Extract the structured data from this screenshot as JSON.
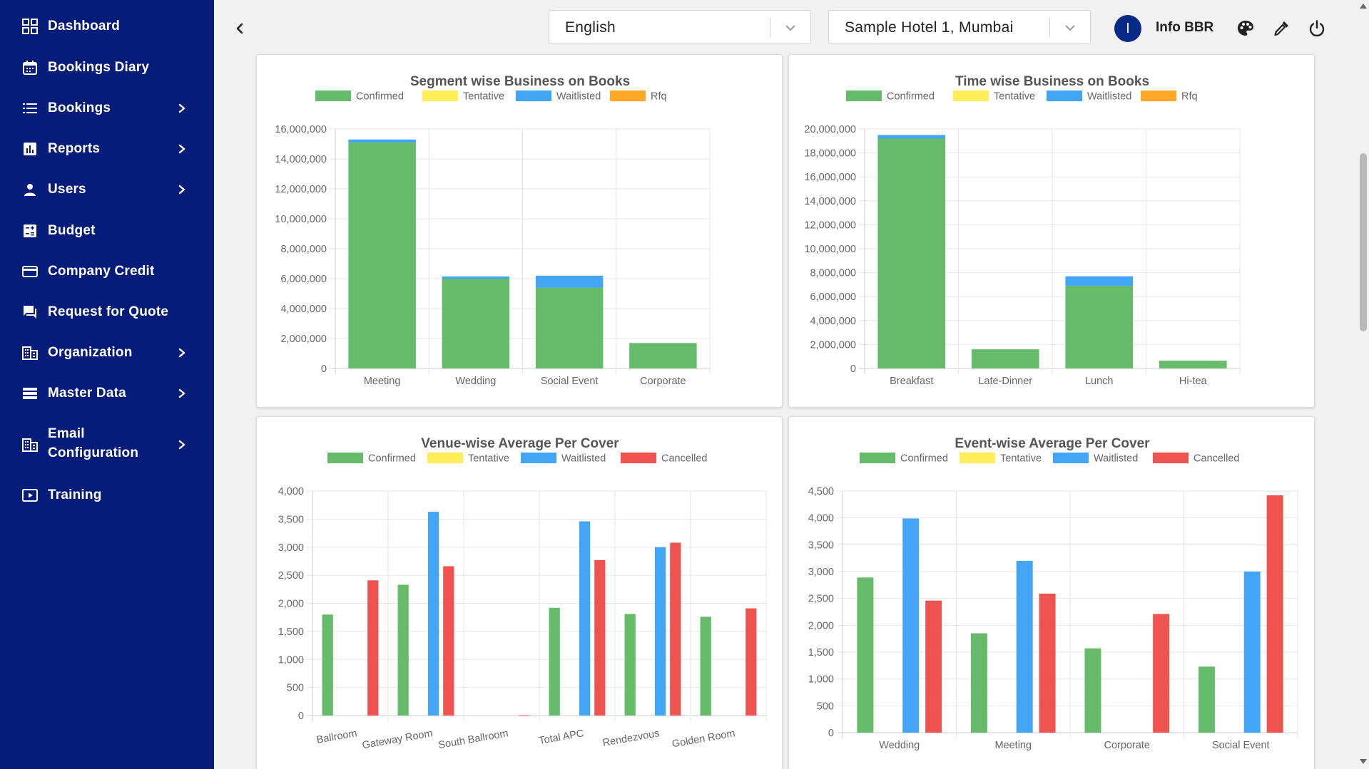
{
  "sidebar": {
    "items": [
      {
        "label": "Dashboard",
        "icon": "grid-icon",
        "chevron": false
      },
      {
        "label": "Bookings Diary",
        "icon": "calendar-icon",
        "chevron": false
      },
      {
        "label": "Bookings",
        "icon": "list-icon",
        "chevron": true
      },
      {
        "label": "Reports",
        "icon": "bar-chart-icon",
        "chevron": true
      },
      {
        "label": "Users",
        "icon": "person-icon",
        "chevron": true
      },
      {
        "label": "Budget",
        "icon": "calculator-icon",
        "chevron": false
      },
      {
        "label": "Company Credit",
        "icon": "credit-card-icon",
        "chevron": false
      },
      {
        "label": "Request for Quote",
        "icon": "chat-icon",
        "chevron": false
      },
      {
        "label": "Organization",
        "icon": "building-icon",
        "chevron": true
      },
      {
        "label": "Master Data",
        "icon": "stack-icon",
        "chevron": true
      },
      {
        "label": "Email\nConfiguration",
        "icon": "building-icon",
        "chevron": true
      },
      {
        "label": "Training",
        "icon": "video-icon",
        "chevron": false
      }
    ]
  },
  "header": {
    "language": "English",
    "property": "Sample Hotel 1, Mumbai",
    "avatar_initial": "I",
    "username": "Info BBR"
  },
  "colors": {
    "confirmed": "#66bb6a",
    "tentative": "#ffee58",
    "waitlisted": "#42a5f5",
    "rfq": "#ffa726",
    "cancelled": "#ef5350",
    "sidebar": "#061c7a"
  },
  "chart_data": [
    {
      "type": "bar",
      "stacked": true,
      "title": "Segment wise Business on Books",
      "categories": [
        "Meeting",
        "Wedding",
        "Social Event",
        "Corporate"
      ],
      "ylim": [
        0,
        16000000
      ],
      "yticks": [
        "16,000,000",
        "14,000,000",
        "12,000,000",
        "10,000,000",
        "8,000,000",
        "6,000,000",
        "4,000,000",
        "2,000,000",
        "0"
      ],
      "legend": [
        "Confirmed",
        "Tentative",
        "Waitlisted",
        "Rfq"
      ],
      "series": [
        {
          "name": "Confirmed",
          "values": [
            15100000,
            6000000,
            5400000,
            1700000
          ]
        },
        {
          "name": "Tentative",
          "values": [
            0,
            0,
            0,
            0
          ]
        },
        {
          "name": "Waitlisted",
          "values": [
            200000,
            150000,
            800000,
            0
          ]
        },
        {
          "name": "Rfq",
          "values": [
            0,
            0,
            0,
            0
          ]
        }
      ]
    },
    {
      "type": "bar",
      "stacked": true,
      "title": "Time wise Business on Books",
      "categories": [
        "Breakfast",
        "Late-Dinner",
        "Lunch",
        "Hi-tea"
      ],
      "ylim": [
        0,
        20000000
      ],
      "yticks": [
        "20,000,000",
        "18,000,000",
        "16,000,000",
        "14,000,000",
        "12,000,000",
        "10,000,000",
        "8,000,000",
        "6,000,000",
        "4,000,000",
        "2,000,000",
        "0"
      ],
      "legend": [
        "Confirmed",
        "Tentative",
        "Waitlisted",
        "Rfq"
      ],
      "series": [
        {
          "name": "Confirmed",
          "values": [
            19200000,
            1600000,
            6900000,
            650000
          ]
        },
        {
          "name": "Tentative",
          "values": [
            0,
            0,
            0,
            0
          ]
        },
        {
          "name": "Waitlisted",
          "values": [
            300000,
            0,
            800000,
            0
          ]
        },
        {
          "name": "Rfq",
          "values": [
            0,
            0,
            0,
            0
          ]
        }
      ]
    },
    {
      "type": "bar",
      "stacked": false,
      "title": "Venue-wise Average Per Cover",
      "categories": [
        "Ballroom",
        "Gateway Room",
        "South Ballroom",
        "Total APC",
        "Rendezvous",
        "Golden Room"
      ],
      "ylim": [
        0,
        4000
      ],
      "yticks": [
        "4,000",
        "3,500",
        "3,000",
        "2,500",
        "2,000",
        "1,500",
        "1,000",
        "500",
        "0"
      ],
      "legend": [
        "Confirmed",
        "Tentative",
        "Waitlisted",
        "Cancelled"
      ],
      "series": [
        {
          "name": "Confirmed",
          "values": [
            1800,
            2330,
            0,
            1920,
            1810,
            1760
          ]
        },
        {
          "name": "Tentative",
          "values": [
            0,
            0,
            0,
            0,
            0,
            0
          ]
        },
        {
          "name": "Waitlisted",
          "values": [
            0,
            3630,
            0,
            3460,
            3000,
            0
          ]
        },
        {
          "name": "Cancelled",
          "values": [
            2410,
            2660,
            5,
            2770,
            3080,
            1910
          ]
        }
      ]
    },
    {
      "type": "bar",
      "stacked": false,
      "title": "Event-wise Average Per Cover",
      "categories": [
        "Wedding",
        "Meeting",
        "Corporate",
        "Social Event"
      ],
      "ylim": [
        0,
        4500
      ],
      "yticks": [
        "4,500",
        "4,000",
        "3,500",
        "3,000",
        "2,500",
        "2,000",
        "1,500",
        "1,000",
        "500",
        "0"
      ],
      "legend": [
        "Confirmed",
        "Tentative",
        "Waitlisted",
        "Cancelled"
      ],
      "series": [
        {
          "name": "Confirmed",
          "values": [
            2890,
            1850,
            1570,
            1230
          ]
        },
        {
          "name": "Tentative",
          "values": [
            0,
            0,
            0,
            0
          ]
        },
        {
          "name": "Waitlisted",
          "values": [
            3990,
            3200,
            0,
            3000
          ]
        },
        {
          "name": "Cancelled",
          "values": [
            2460,
            2590,
            2210,
            4420
          ]
        }
      ]
    }
  ]
}
